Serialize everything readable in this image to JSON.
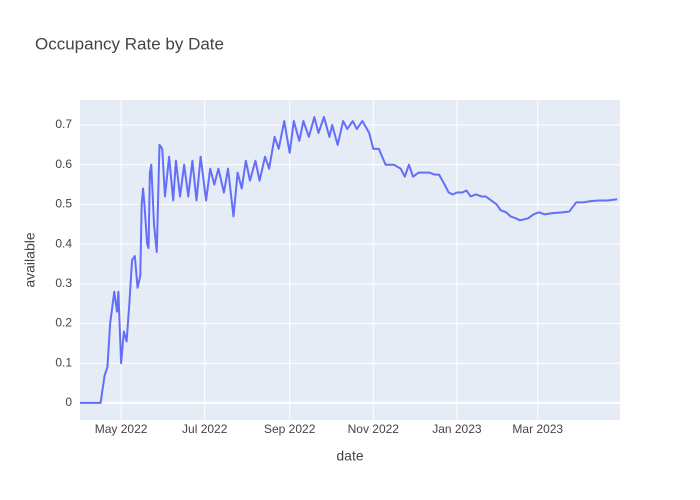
{
  "chart_data": {
    "type": "line",
    "title": "Occupancy Rate by Date",
    "x_label": "date",
    "y_label": "available",
    "color": "#636efa",
    "grid": true,
    "x": [
      "2022-04-01",
      "2022-04-16",
      "2022-04-19",
      "2022-04-21",
      "2022-04-23",
      "2022-04-26",
      "2022-04-28",
      "2022-04-29",
      "2022-05-01",
      "2022-05-03",
      "2022-05-05",
      "2022-05-07",
      "2022-05-09",
      "2022-05-11",
      "2022-05-13",
      "2022-05-15",
      "2022-05-16",
      "2022-05-17",
      "2022-05-18",
      "2022-05-20",
      "2022-05-21",
      "2022-05-22",
      "2022-05-23",
      "2022-05-25",
      "2022-05-27",
      "2022-05-29",
      "2022-05-31",
      "2022-06-02",
      "2022-06-05",
      "2022-06-08",
      "2022-06-10",
      "2022-06-13",
      "2022-06-16",
      "2022-06-19",
      "2022-06-22",
      "2022-06-25",
      "2022-06-28",
      "2022-07-02",
      "2022-07-05",
      "2022-07-08",
      "2022-07-11",
      "2022-07-15",
      "2022-07-18",
      "2022-07-22",
      "2022-07-25",
      "2022-07-28",
      "2022-07-31",
      "2022-08-03",
      "2022-08-07",
      "2022-08-10",
      "2022-08-14",
      "2022-08-17",
      "2022-08-21",
      "2022-08-24",
      "2022-08-28",
      "2022-09-01",
      "2022-09-04",
      "2022-09-08",
      "2022-09-11",
      "2022-09-15",
      "2022-09-19",
      "2022-09-22",
      "2022-09-26",
      "2022-09-30",
      "2022-10-02",
      "2022-10-06",
      "2022-10-10",
      "2022-10-13",
      "2022-10-17",
      "2022-10-20",
      "2022-10-24",
      "2022-10-29",
      "2022-11-01",
      "2022-11-05",
      "2022-11-10",
      "2022-11-16",
      "2022-11-21",
      "2022-11-24",
      "2022-11-27",
      "2022-11-30",
      "2022-12-04",
      "2022-12-08",
      "2022-12-12",
      "2022-12-16",
      "2022-12-19",
      "2022-12-23",
      "2022-12-26",
      "2022-12-29",
      "2023-01-01",
      "2023-01-05",
      "2023-01-08",
      "2023-01-11",
      "2023-01-15",
      "2023-01-19",
      "2023-01-22",
      "2023-01-26",
      "2023-01-30",
      "2023-02-02",
      "2023-02-06",
      "2023-02-09",
      "2023-02-13",
      "2023-02-16",
      "2023-02-22",
      "2023-02-26",
      "2023-03-02",
      "2023-03-06",
      "2023-03-12",
      "2023-03-19",
      "2023-03-24",
      "2023-03-29",
      "2023-04-03",
      "2023-04-08",
      "2023-04-14",
      "2023-04-21",
      "2023-04-28"
    ],
    "values": [
      0,
      0,
      0.07,
      0.09,
      0.2,
      0.28,
      0.23,
      0.28,
      0.1,
      0.18,
      0.155,
      0.25,
      0.36,
      0.37,
      0.29,
      0.32,
      0.5,
      0.54,
      0.5,
      0.4,
      0.39,
      0.58,
      0.6,
      0.45,
      0.38,
      0.65,
      0.64,
      0.52,
      0.62,
      0.51,
      0.61,
      0.52,
      0.6,
      0.52,
      0.61,
      0.51,
      0.62,
      0.51,
      0.59,
      0.55,
      0.59,
      0.53,
      0.59,
      0.47,
      0.58,
      0.54,
      0.61,
      0.56,
      0.61,
      0.56,
      0.62,
      0.59,
      0.67,
      0.64,
      0.71,
      0.63,
      0.71,
      0.66,
      0.71,
      0.67,
      0.72,
      0.68,
      0.72,
      0.67,
      0.7,
      0.65,
      0.71,
      0.69,
      0.71,
      0.69,
      0.71,
      0.68,
      0.64,
      0.64,
      0.6,
      0.6,
      0.59,
      0.57,
      0.6,
      0.57,
      0.58,
      0.58,
      0.58,
      0.575,
      0.575,
      0.55,
      0.53,
      0.525,
      0.53,
      0.53,
      0.535,
      0.52,
      0.525,
      0.52,
      0.52,
      0.51,
      0.5,
      0.485,
      0.48,
      0.47,
      0.465,
      0.46,
      0.465,
      0.475,
      0.48,
      0.475,
      0.478,
      0.48,
      0.482,
      0.505,
      0.505,
      0.508,
      0.51,
      0.51,
      0.513
    ],
    "xlim": [
      "2022-04-01",
      "2023-04-30"
    ],
    "xticks": [
      {
        "value": "2022-05-01",
        "label": "May 2022"
      },
      {
        "value": "2022-07-01",
        "label": "Jul 2022"
      },
      {
        "value": "2022-09-01",
        "label": "Sep 2022"
      },
      {
        "value": "2022-11-01",
        "label": "Nov 2022"
      },
      {
        "value": "2023-01-01",
        "label": "Jan 2023"
      },
      {
        "value": "2023-03-01",
        "label": "Mar 2023"
      }
    ],
    "ylim": [
      -0.043,
      0.763
    ],
    "yticks": [
      0,
      0.1,
      0.2,
      0.3,
      0.4,
      0.5,
      0.6,
      0.7
    ]
  }
}
